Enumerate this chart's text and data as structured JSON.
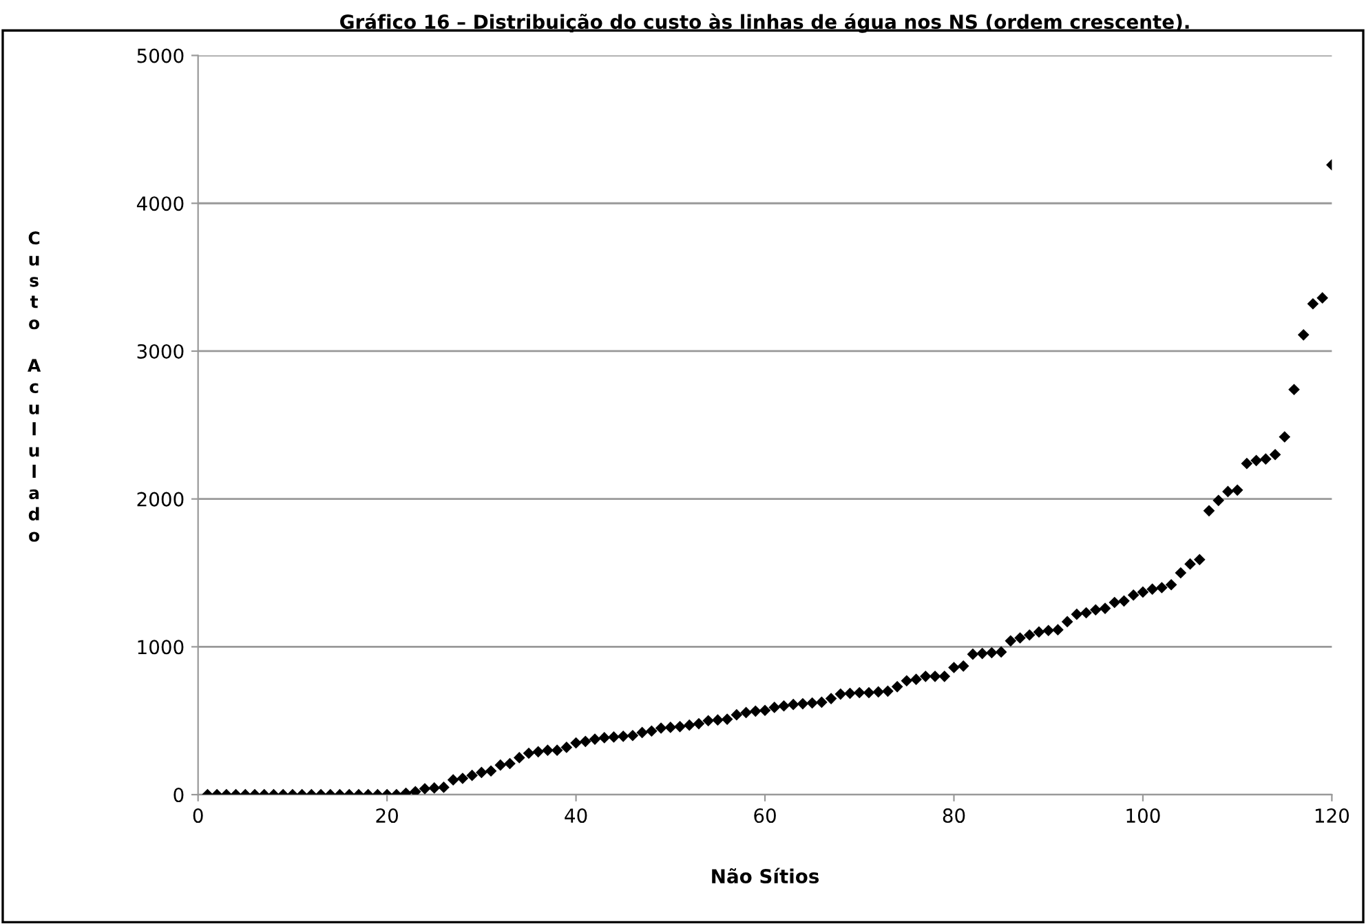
{
  "chart_data": {
    "type": "scatter",
    "title": "Gráfico 16 – Distribuição do custo às linhas de água nos NS (ordem crescente).",
    "xlabel": "Não Sítios",
    "ylabel": "Custo Acululado",
    "x": [
      1,
      2,
      3,
      4,
      5,
      6,
      7,
      8,
      9,
      10,
      11,
      12,
      13,
      14,
      15,
      16,
      17,
      18,
      19,
      20,
      21,
      22,
      23,
      24,
      25,
      26,
      27,
      28,
      29,
      30,
      31,
      32,
      33,
      34,
      35,
      36,
      37,
      38,
      39,
      40,
      41,
      42,
      43,
      44,
      45,
      46,
      47,
      48,
      49,
      50,
      51,
      52,
      53,
      54,
      55,
      56,
      57,
      58,
      59,
      60,
      61,
      62,
      63,
      64,
      65,
      66,
      67,
      68,
      69,
      70,
      71,
      72,
      73,
      74,
      75,
      76,
      77,
      78,
      79,
      80,
      81,
      82,
      83,
      84,
      85,
      86,
      87,
      88,
      89,
      90,
      91,
      92,
      93,
      94,
      95,
      96,
      97,
      98,
      99,
      100,
      101,
      102,
      103,
      104,
      105,
      106,
      107,
      108,
      109,
      110,
      111,
      112,
      113,
      114,
      115,
      116,
      117,
      118,
      119,
      120
    ],
    "series": [
      {
        "color": "#000000",
        "values": [
          0,
          0,
          0,
          0,
          0,
          0,
          0,
          0,
          0,
          0,
          0,
          0,
          0,
          0,
          0,
          0,
          0,
          0,
          0,
          0,
          0,
          10,
          20,
          40,
          45,
          50,
          100,
          110,
          130,
          150,
          160,
          200,
          210,
          250,
          280,
          290,
          300,
          300,
          320,
          350,
          360,
          375,
          385,
          390,
          395,
          400,
          420,
          430,
          450,
          455,
          460,
          470,
          480,
          500,
          505,
          510,
          540,
          555,
          565,
          570,
          590,
          600,
          610,
          615,
          620,
          625,
          650,
          680,
          685,
          690,
          690,
          695,
          700,
          730,
          770,
          780,
          800,
          800,
          800,
          860,
          870,
          950,
          955,
          960,
          965,
          1040,
          1060,
          1080,
          1100,
          1110,
          1115,
          1170,
          1220,
          1230,
          1250,
          1260,
          1300,
          1310,
          1350,
          1370,
          1390,
          1400,
          1420,
          1500,
          1560,
          1590,
          1920,
          1990,
          2050,
          2060,
          2240,
          2260,
          2270,
          2300,
          2420,
          2740,
          3110,
          3320,
          3360,
          4260
        ]
      }
    ],
    "xlim": [
      0,
      120
    ],
    "xticks": [
      0,
      20,
      40,
      60,
      80,
      100,
      120
    ],
    "ylim": [
      0,
      5000
    ],
    "yticks": [
      0,
      1000,
      2000,
      3000,
      4000,
      5000
    ],
    "grid": "y",
    "marker": "diamond",
    "legend": false
  }
}
